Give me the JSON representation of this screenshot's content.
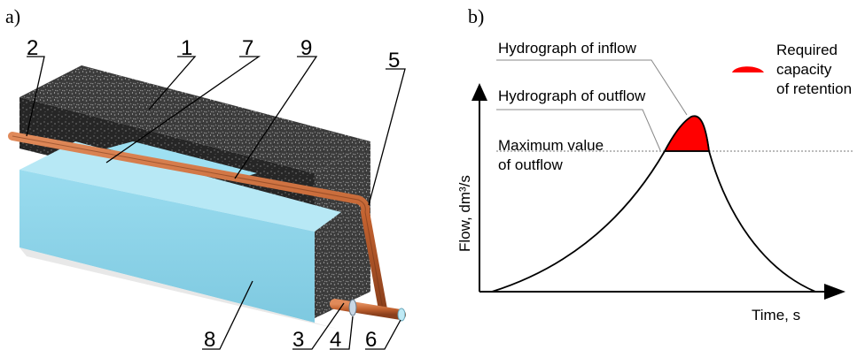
{
  "panel_a": {
    "label": "a)",
    "callouts": [
      "1",
      "2",
      "3",
      "4",
      "5",
      "6",
      "7",
      "8",
      "9"
    ]
  },
  "panel_b": {
    "label": "b)",
    "hydrograph_inflow": "Hydrograph of inflow",
    "hydrograph_outflow": "Hydrograph of outflow",
    "max_outflow_line1": "Maximum value",
    "max_outflow_line2": "of outflow",
    "legend_line1": "Required",
    "legend_line2": "capacity",
    "legend_line3": "of retention",
    "y_axis_label": "Flow, dm³/s",
    "x_axis_label": "Time, s"
  },
  "colors": {
    "water": "#8fd3e8",
    "pipe": "#c0602e",
    "gravel": "#3a3a3a",
    "retention_fill": "#ff0000",
    "axis": "#000000"
  }
}
